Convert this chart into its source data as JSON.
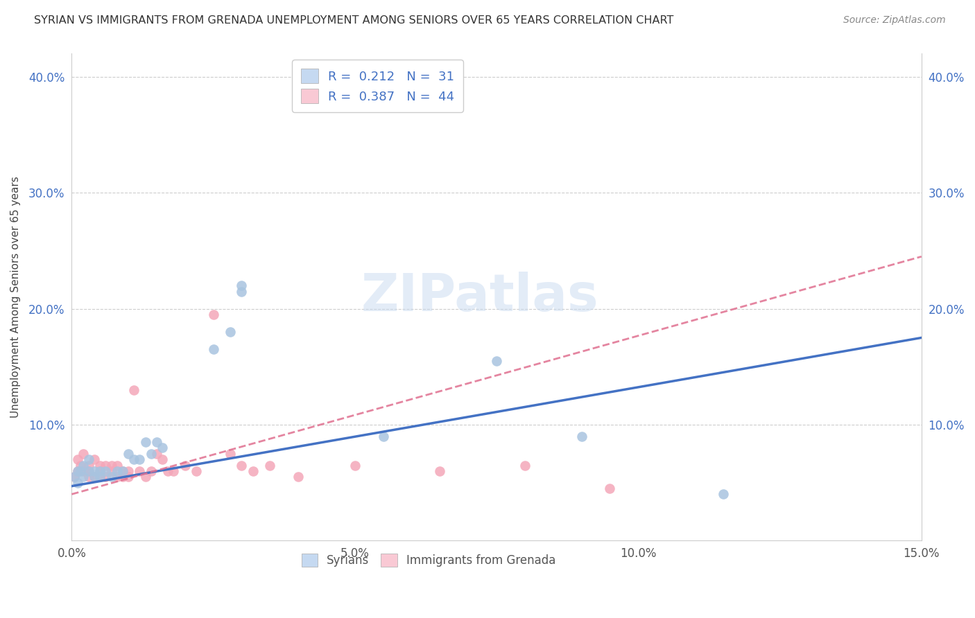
{
  "title": "SYRIAN VS IMMIGRANTS FROM GRENADA UNEMPLOYMENT AMONG SENIORS OVER 65 YEARS CORRELATION CHART",
  "source": "Source: ZipAtlas.com",
  "ylabel": "Unemployment Among Seniors over 65 years",
  "xlim": [
    0.0,
    0.15
  ],
  "ylim": [
    0.0,
    0.42
  ],
  "xtick_labels": [
    "0.0%",
    "5.0%",
    "10.0%",
    "15.0%"
  ],
  "xtick_vals": [
    0.0,
    0.05,
    0.1,
    0.15
  ],
  "ytick_labels": [
    "10.0%",
    "20.0%",
    "30.0%",
    "40.0%"
  ],
  "ytick_vals": [
    0.1,
    0.2,
    0.3,
    0.4
  ],
  "syrian_color": "#a8c4e0",
  "grenada_color": "#f4a7b9",
  "syrian_line_color": "#4472c4",
  "grenada_line_color": "#e07090",
  "legend_box_color_syrian": "#c5d9f1",
  "legend_box_color_grenada": "#f9c9d4",
  "R_syrian": 0.212,
  "N_syrian": 31,
  "R_grenada": 0.387,
  "N_grenada": 44,
  "watermark": "ZIPatlas",
  "syrian_x": [
    0.0005,
    0.001,
    0.001,
    0.0015,
    0.002,
    0.002,
    0.003,
    0.003,
    0.004,
    0.004,
    0.005,
    0.005,
    0.006,
    0.007,
    0.008,
    0.009,
    0.01,
    0.011,
    0.012,
    0.013,
    0.014,
    0.015,
    0.016,
    0.025,
    0.028,
    0.03,
    0.03,
    0.055,
    0.075,
    0.09,
    0.115
  ],
  "syrian_y": [
    0.055,
    0.06,
    0.05,
    0.06,
    0.055,
    0.065,
    0.06,
    0.07,
    0.055,
    0.06,
    0.06,
    0.055,
    0.06,
    0.055,
    0.06,
    0.06,
    0.075,
    0.07,
    0.07,
    0.085,
    0.075,
    0.085,
    0.08,
    0.165,
    0.18,
    0.215,
    0.22,
    0.09,
    0.155,
    0.09,
    0.04
  ],
  "grenada_x": [
    0.0005,
    0.001,
    0.001,
    0.0015,
    0.002,
    0.002,
    0.003,
    0.003,
    0.003,
    0.004,
    0.004,
    0.005,
    0.005,
    0.005,
    0.006,
    0.006,
    0.007,
    0.007,
    0.008,
    0.008,
    0.009,
    0.009,
    0.01,
    0.01,
    0.011,
    0.012,
    0.013,
    0.014,
    0.015,
    0.016,
    0.017,
    0.018,
    0.02,
    0.022,
    0.025,
    0.028,
    0.03,
    0.032,
    0.035,
    0.04,
    0.05,
    0.065,
    0.08,
    0.095
  ],
  "grenada_y": [
    0.055,
    0.06,
    0.07,
    0.065,
    0.06,
    0.075,
    0.055,
    0.06,
    0.065,
    0.055,
    0.07,
    0.055,
    0.06,
    0.065,
    0.055,
    0.065,
    0.06,
    0.065,
    0.055,
    0.065,
    0.06,
    0.055,
    0.055,
    0.06,
    0.13,
    0.06,
    0.055,
    0.06,
    0.075,
    0.07,
    0.06,
    0.06,
    0.065,
    0.06,
    0.195,
    0.075,
    0.065,
    0.06,
    0.065,
    0.055,
    0.065,
    0.06,
    0.065,
    0.045
  ],
  "syrian_line_x0": 0.0,
  "syrian_line_y0": 0.047,
  "syrian_line_x1": 0.15,
  "syrian_line_y1": 0.175,
  "grenada_line_x0": 0.0,
  "grenada_line_y0": 0.04,
  "grenada_line_x1": 0.15,
  "grenada_line_y1": 0.245
}
